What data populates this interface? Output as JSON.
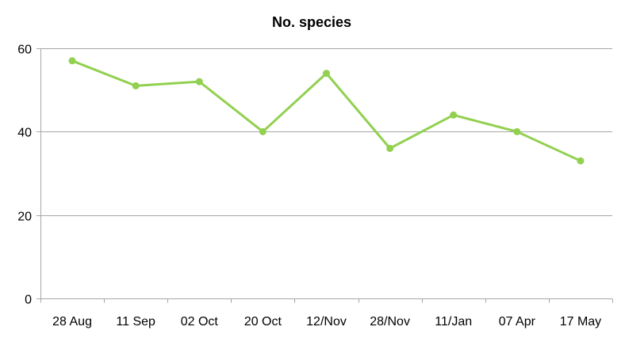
{
  "chart_data": {
    "type": "line",
    "title": "No. species",
    "xlabel": "",
    "ylabel": "",
    "categories": [
      "28 Aug",
      "11 Sep",
      "02 Oct",
      "20 Oct",
      "12/Nov",
      "28/Nov",
      "11/Jan",
      "07 Apr",
      "17 May"
    ],
    "series": [
      {
        "values": [
          57,
          51,
          52,
          40,
          54,
          36,
          44,
          40,
          33
        ],
        "color": "#92d050"
      }
    ],
    "ylim": [
      0,
      60
    ],
    "yticks": [
      0,
      20,
      40,
      60
    ],
    "ytick_labels": [
      "0",
      "20",
      "40",
      "60"
    ],
    "grid": true,
    "gridline_color": "#a6a6a6",
    "legend": "none"
  }
}
